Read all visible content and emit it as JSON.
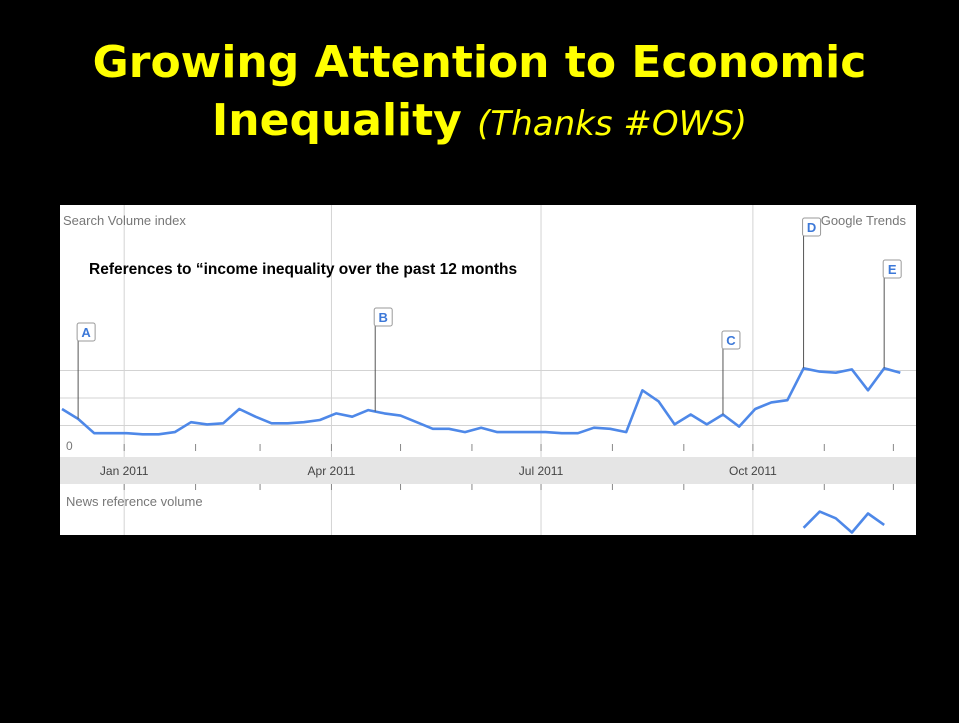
{
  "slide": {
    "title_main": "Growing Attention to Economic Inequality",
    "title_sub": "(Thanks #OWS)"
  },
  "chart": {
    "source": "Google Trends",
    "caption": "References to “income inequality over the past 12 months",
    "zero_label": "0",
    "lower_panel_label": "News reference volume"
  },
  "chart_data": {
    "type": "line",
    "title": "References to “income inequality over the past 12 months",
    "ylabel": "Search Volume index",
    "xlabel": "",
    "x_ticks": [
      "Jan 2011",
      "Apr 2011",
      "Jul 2011",
      "Oct 2011"
    ],
    "ylim": [
      0,
      100
    ],
    "grid": true,
    "series": [
      {
        "name": "",
        "color": "#4e88e8",
        "x": [
          "2010-12-05",
          "2010-12-12",
          "2010-12-19",
          "2010-12-26",
          "2011-01-02",
          "2011-01-09",
          "2011-01-16",
          "2011-01-23",
          "2011-01-30",
          "2011-02-06",
          "2011-02-13",
          "2011-02-20",
          "2011-02-27",
          "2011-03-06",
          "2011-03-13",
          "2011-03-20",
          "2011-03-27",
          "2011-04-03",
          "2011-04-10",
          "2011-04-17",
          "2011-04-24",
          "2011-05-01",
          "2011-05-08",
          "2011-05-15",
          "2011-05-22",
          "2011-05-29",
          "2011-06-05",
          "2011-06-12",
          "2011-06-19",
          "2011-06-26",
          "2011-07-03",
          "2011-07-10",
          "2011-07-17",
          "2011-07-24",
          "2011-07-31",
          "2011-08-07",
          "2011-08-14",
          "2011-08-21",
          "2011-08-28",
          "2011-09-04",
          "2011-09-11",
          "2011-09-18",
          "2011-09-25",
          "2011-10-02",
          "2011-10-09",
          "2011-10-16",
          "2011-10-23",
          "2011-10-30",
          "2011-11-06",
          "2011-11-13",
          "2011-11-20",
          "2011-11-27",
          "2011-12-04"
        ],
        "values": [
          40,
          31,
          18,
          18,
          18,
          17,
          17,
          19,
          28,
          26,
          27,
          40,
          33,
          27,
          27,
          28,
          30,
          36,
          33,
          39,
          36,
          34,
          28,
          22,
          22,
          19,
          23,
          19,
          19,
          19,
          19,
          18,
          18,
          23,
          22,
          19,
          57,
          47,
          26,
          35,
          26,
          35,
          24,
          40,
          46,
          48,
          77,
          74,
          73,
          76,
          57,
          77,
          73
        ]
      }
    ],
    "annotations": [
      {
        "label": "A",
        "x": "2010-12-12"
      },
      {
        "label": "B",
        "x": "2011-04-20"
      },
      {
        "label": "C",
        "x": "2011-09-18"
      },
      {
        "label": "D",
        "x": "2011-10-23"
      },
      {
        "label": "E",
        "x": "2011-11-27"
      }
    ],
    "secondary_series": {
      "name": "News reference volume",
      "x": [
        "2011-10-23",
        "2011-10-30",
        "2011-11-06",
        "2011-11-13",
        "2011-11-20",
        "2011-11-27"
      ],
      "values": [
        55,
        72,
        65,
        50,
        70,
        58
      ]
    },
    "colors": {
      "line": "#4e88e8",
      "title": "#ffff00",
      "axis_band": "#e5e5e5",
      "grid": "#cccccc"
    }
  }
}
